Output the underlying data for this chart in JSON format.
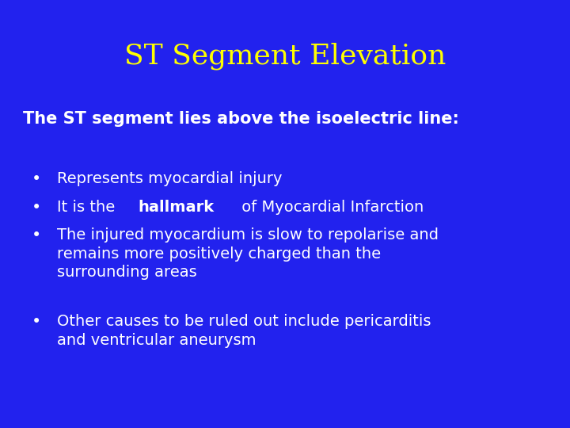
{
  "title": "ST Segment Elevation",
  "title_color": "#FFFF00",
  "background_color": "#2222EE",
  "subtitle": "The ST segment lies above the isoelectric line:",
  "subtitle_color": "#FFFFFF",
  "bullet_color": "#FFFFFF",
  "bullets": [
    {
      "text": "Represents myocardial injury",
      "bold_part": null
    },
    {
      "text_before": "It is the ",
      "bold_part": "hallmark",
      "text_after": " of Myocardial Infarction"
    },
    {
      "text": "The injured myocardium is slow to repolarise and\nremains more positively charged than the\nsurrounding areas",
      "bold_part": null
    },
    {
      "text": "Other causes to be ruled out include pericarditis\nand ventricular aneurysm",
      "bold_part": null
    }
  ],
  "title_fontsize": 26,
  "subtitle_fontsize": 15,
  "bullet_fontsize": 14,
  "fig_width": 7.2,
  "fig_height": 5.4,
  "dpi": 100
}
